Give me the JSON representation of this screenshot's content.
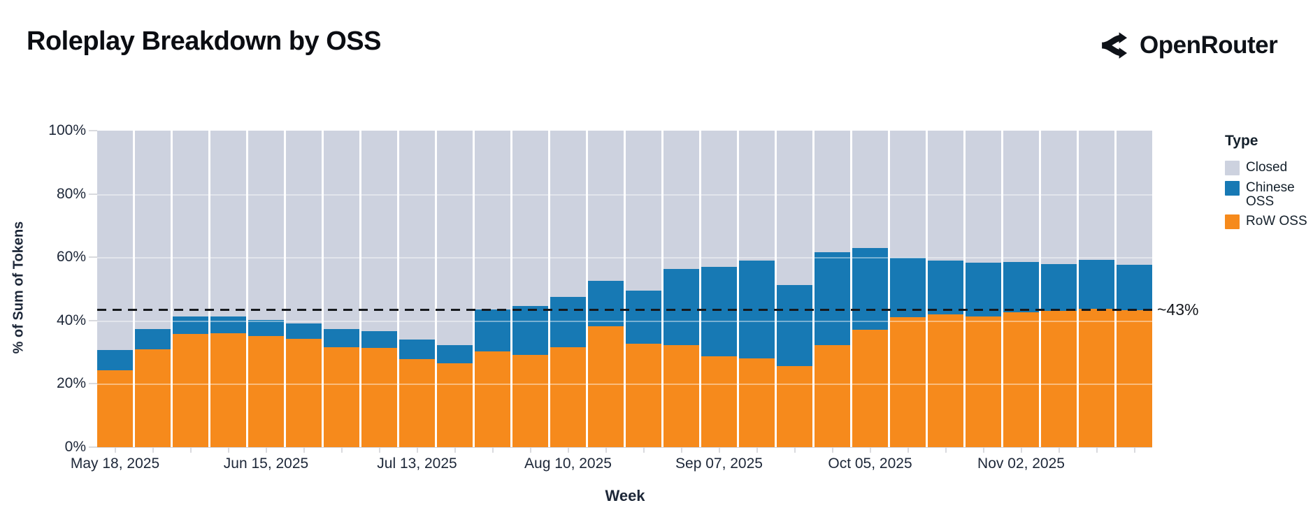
{
  "header": {
    "title": "Roleplay Breakdown by OSS",
    "brand": "OpenRouter"
  },
  "chart_data": {
    "type": "bar",
    "subtype": "stacked-100-percent",
    "title": "Roleplay Breakdown by OSS",
    "xlabel": "Week",
    "ylabel": "% of Sum of Tokens",
    "ylim": [
      0,
      100
    ],
    "grid": "faint horizontal lines every 20%",
    "legend_position": "right",
    "colors": {
      "closed": "#CDD2DF",
      "chinese": "#1779B4",
      "row": "#F68A1C"
    },
    "y_ticks": [
      {
        "label": "0%",
        "value": 0
      },
      {
        "label": "20%",
        "value": 20
      },
      {
        "label": "40%",
        "value": 40
      },
      {
        "label": "60%",
        "value": 60
      },
      {
        "label": "80%",
        "value": 80
      },
      {
        "label": "100%",
        "value": 100
      }
    ],
    "x_ticks": [
      {
        "label": "May 18, 2025",
        "bar": 0
      },
      {
        "label": "Jun 15, 2025",
        "bar": 4
      },
      {
        "label": "Jul 13, 2025",
        "bar": 8
      },
      {
        "label": "Aug 10, 2025",
        "bar": 12
      },
      {
        "label": "Sep 07, 2025",
        "bar": 16
      },
      {
        "label": "Oct 05, 2025",
        "bar": 20
      },
      {
        "label": "Nov 02, 2025",
        "bar": 24
      }
    ],
    "series_order_bottom_to_top": [
      "RoW OSS",
      "Chinese OSS",
      "Closed"
    ],
    "note": "28 weekly bars; Closed fills remainder to 100%",
    "bars": [
      {
        "row": 24.2,
        "chinese": 6.5
      },
      {
        "row": 31.0,
        "chinese": 6.2
      },
      {
        "row": 35.8,
        "chinese": 5.4
      },
      {
        "row": 35.9,
        "chinese": 5.3
      },
      {
        "row": 35.0,
        "chinese": 5.1
      },
      {
        "row": 34.2,
        "chinese": 4.9
      },
      {
        "row": 31.6,
        "chinese": 5.7
      },
      {
        "row": 31.3,
        "chinese": 5.4
      },
      {
        "row": 27.8,
        "chinese": 6.3
      },
      {
        "row": 26.5,
        "chinese": 5.7
      },
      {
        "row": 30.2,
        "chinese": 13.3
      },
      {
        "row": 29.2,
        "chinese": 15.3
      },
      {
        "row": 31.5,
        "chinese": 16.0
      },
      {
        "row": 38.1,
        "chinese": 14.5
      },
      {
        "row": 32.7,
        "chinese": 16.8
      },
      {
        "row": 32.2,
        "chinese": 24.0
      },
      {
        "row": 28.7,
        "chinese": 28.2
      },
      {
        "row": 28.0,
        "chinese": 31.0
      },
      {
        "row": 25.6,
        "chinese": 25.6
      },
      {
        "row": 32.3,
        "chinese": 29.3
      },
      {
        "row": 37.0,
        "chinese": 26.0
      },
      {
        "row": 41.1,
        "chinese": 18.7
      },
      {
        "row": 42.0,
        "chinese": 17.0
      },
      {
        "row": 41.3,
        "chinese": 17.0
      },
      {
        "row": 42.5,
        "chinese": 16.0
      },
      {
        "row": 43.0,
        "chinese": 14.8
      },
      {
        "row": 43.8,
        "chinese": 15.4
      },
      {
        "row": 43.2,
        "chinese": 14.4
      }
    ],
    "annotation": {
      "label": "~43%",
      "value": 43.3
    },
    "legend": {
      "title": "Type",
      "items": [
        {
          "label": "Closed",
          "key": "closed"
        },
        {
          "label": "Chinese OSS",
          "key": "chinese"
        },
        {
          "label": "RoW OSS",
          "key": "row"
        }
      ]
    }
  }
}
